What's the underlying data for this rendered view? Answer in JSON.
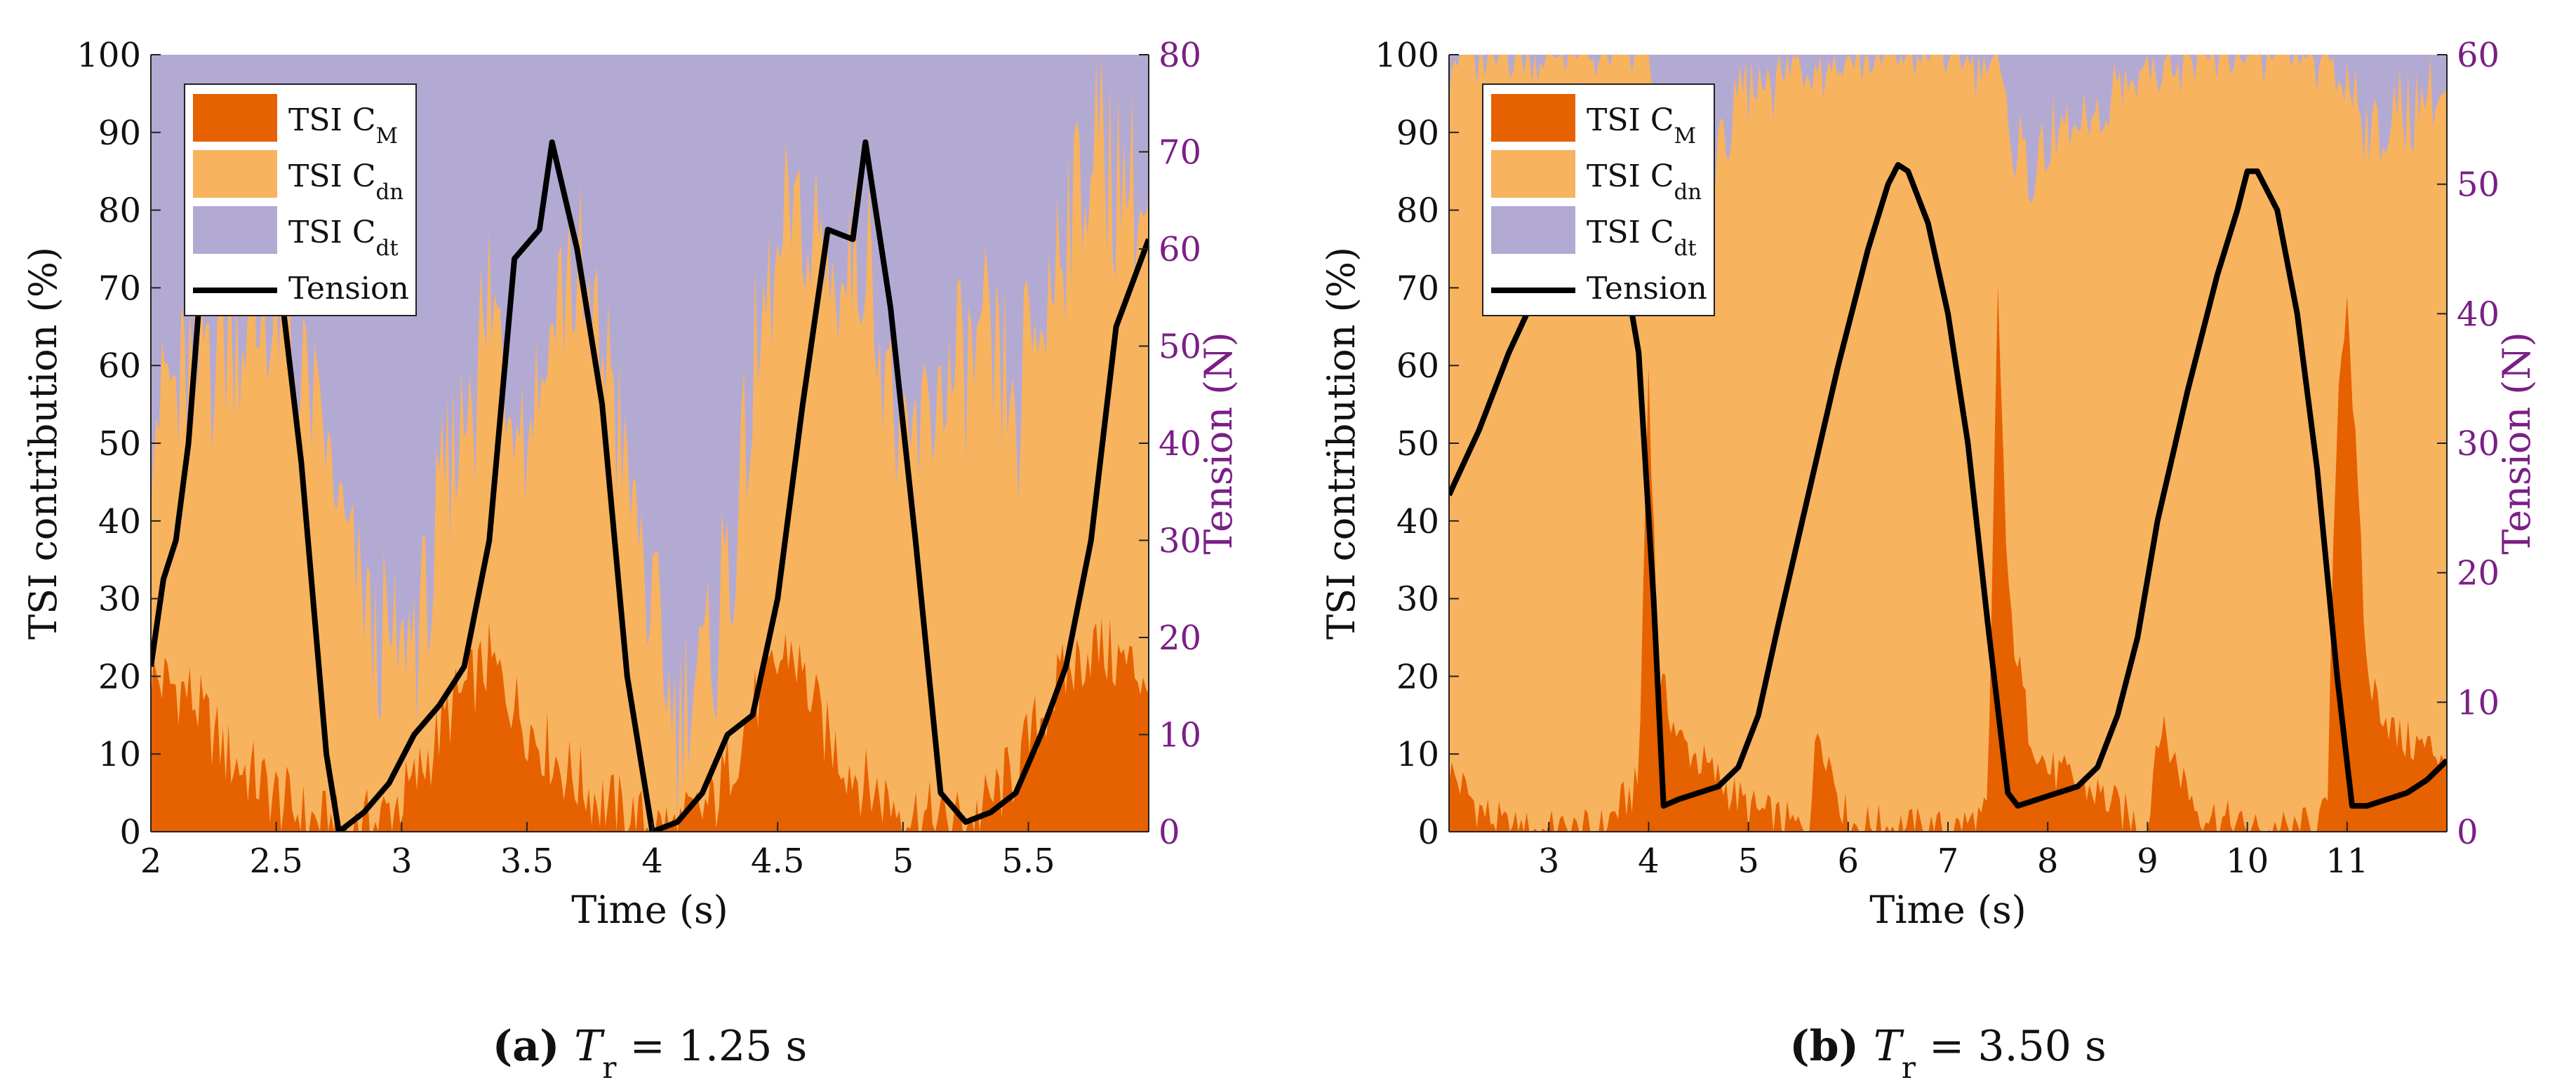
{
  "colors": {
    "cm": "#e66100",
    "cdn": "#f8b35f",
    "cdt": "#b3aad3",
    "tension": "#000000",
    "right_axis": "#7b1f86"
  },
  "legend": {
    "cm": "TSI C_M",
    "cdn": "TSI C_dn",
    "cdt": "TSI C_dt",
    "tension": "Tension"
  },
  "chart_data": [
    {
      "type": "area",
      "panel": "a",
      "caption": {
        "letter": "(a)",
        "text": "T_r = 1.25 s"
      },
      "xlabel": "Time (s)",
      "ylabel_left": "TSI contribution (%)",
      "ylabel_right": "Tension (N)",
      "xlim": [
        2,
        5.98
      ],
      "ylim_left": [
        0,
        100
      ],
      "ylim_right": [
        0,
        80
      ],
      "xticks": [
        2,
        2.5,
        3,
        3.5,
        4,
        4.5,
        5,
        5.5
      ],
      "xtick_labels": [
        "2",
        "2.5",
        "3",
        "3.5",
        "4",
        "4.5",
        "5",
        "5.5"
      ],
      "yticks_left": [
        "0",
        "10",
        "20",
        "30",
        "40",
        "50",
        "60",
        "70",
        "80",
        "90",
        "100"
      ],
      "yticks_right": [
        "0",
        "10",
        "20",
        "30",
        "40",
        "50",
        "60",
        "70",
        "80"
      ],
      "series": [
        {
          "name": "TSI C_M",
          "x": [
            2.0,
            2.15,
            2.3,
            2.45,
            2.6,
            2.75,
            2.9,
            3.05,
            3.2,
            3.35,
            3.5,
            3.65,
            3.8,
            3.95,
            4.1,
            4.25,
            4.4,
            4.55,
            4.7,
            4.85,
            5.0,
            5.15,
            5.3,
            5.45,
            5.6,
            5.75,
            5.98
          ],
          "y": [
            20,
            18,
            10,
            6,
            2,
            0,
            1,
            6,
            16,
            22,
            14,
            8,
            4,
            1,
            0,
            4,
            16,
            24,
            12,
            6,
            3,
            1,
            2,
            8,
            18,
            24,
            20
          ]
        },
        {
          "name": "TSI C_dn",
          "x": [
            2.0,
            2.15,
            2.3,
            2.45,
            2.6,
            2.75,
            2.9,
            3.05,
            3.2,
            3.35,
            3.5,
            3.65,
            3.8,
            3.95,
            4.1,
            4.25,
            4.4,
            4.55,
            4.7,
            4.85,
            5.0,
            5.15,
            5.3,
            5.45,
            5.6,
            5.75,
            5.98
          ],
          "y": [
            35,
            40,
            55,
            60,
            58,
            40,
            22,
            18,
            30,
            45,
            40,
            65,
            60,
            35,
            12,
            20,
            40,
            55,
            60,
            70,
            45,
            55,
            60,
            45,
            55,
            65,
            60
          ]
        },
        {
          "name": "Tension",
          "x": [
            2.0,
            2.05,
            2.1,
            2.15,
            2.2,
            2.3,
            2.4,
            2.5,
            2.6,
            2.7,
            2.75,
            2.85,
            2.95,
            3.05,
            3.15,
            3.25,
            3.35,
            3.45,
            3.55,
            3.6,
            3.7,
            3.8,
            3.9,
            4.0,
            4.1,
            4.2,
            4.3,
            4.4,
            4.5,
            4.6,
            4.7,
            4.8,
            4.85,
            4.95,
            5.05,
            5.15,
            5.25,
            5.35,
            5.45,
            5.55,
            5.65,
            5.75,
            5.85,
            5.98
          ],
          "y": [
            17,
            26,
            30,
            40,
            57,
            66,
            64,
            60,
            38,
            8,
            0,
            2,
            5,
            10,
            13,
            17,
            30,
            59,
            62,
            71,
            60,
            44,
            16,
            0,
            1,
            4,
            10,
            12,
            24,
            44,
            62,
            61,
            71,
            54,
            30,
            4,
            1,
            2,
            4,
            10,
            17,
            30,
            52,
            61
          ]
        }
      ]
    },
    {
      "type": "area",
      "panel": "b",
      "caption": {
        "letter": "(b)",
        "text": "T_r = 3.50 s"
      },
      "xlabel": "Time (s)",
      "ylabel_left": "TSI contribution (%)",
      "ylabel_right": "Tension (N)",
      "xlim": [
        2,
        12
      ],
      "ylim_left": [
        0,
        100
      ],
      "ylim_right": [
        0,
        60
      ],
      "xticks": [
        3,
        4,
        5,
        6,
        7,
        8,
        9,
        10,
        11
      ],
      "xtick_labels": [
        "3",
        "4",
        "5",
        "6",
        "7",
        "8",
        "9",
        "10",
        "11"
      ],
      "yticks_left": [
        "0",
        "10",
        "20",
        "30",
        "40",
        "50",
        "60",
        "70",
        "80",
        "90",
        "100"
      ],
      "yticks_right": [
        "0",
        "10",
        "20",
        "30",
        "40",
        "50",
        "60"
      ],
      "series": [
        {
          "name": "TSI C_M",
          "x": [
            2.0,
            2.3,
            2.6,
            3.0,
            3.5,
            3.9,
            4.0,
            4.1,
            4.3,
            4.6,
            5.0,
            5.6,
            5.7,
            6.0,
            7.0,
            7.4,
            7.5,
            7.6,
            7.8,
            8.0,
            8.5,
            9.0,
            9.1,
            9.5,
            10.0,
            10.5,
            10.8,
            10.9,
            11.0,
            11.2,
            11.5,
            12.0
          ],
          "y": [
            8,
            3,
            0,
            0,
            0,
            6,
            60,
            20,
            12,
            8,
            3,
            0,
            14,
            1,
            0,
            2,
            70,
            30,
            14,
            8,
            5,
            0,
            14,
            3,
            0,
            0,
            2,
            55,
            70,
            20,
            12,
            10
          ]
        },
        {
          "name": "TSI C_dn",
          "x": [
            2.0,
            2.3,
            2.6,
            3.0,
            3.5,
            3.9,
            4.0,
            4.1,
            4.3,
            4.6,
            5.0,
            5.6,
            5.7,
            6.0,
            7.0,
            7.4,
            7.5,
            7.6,
            7.8,
            8.0,
            8.5,
            9.0,
            9.1,
            9.5,
            10.0,
            10.5,
            10.8,
            10.9,
            11.0,
            11.2,
            11.5,
            12.0
          ],
          "y": [
            92,
            97,
            100,
            100,
            100,
            94,
            40,
            68,
            74,
            78,
            92,
            99,
            86,
            99,
            100,
            97,
            28,
            60,
            72,
            80,
            86,
            100,
            86,
            97,
            100,
            100,
            97,
            42,
            28,
            70,
            80,
            86
          ]
        },
        {
          "name": "Tension",
          "x": [
            2.0,
            2.3,
            2.6,
            2.9,
            3.2,
            3.5,
            3.7,
            3.9,
            4.05,
            4.15,
            4.3,
            4.5,
            4.7,
            4.9,
            5.1,
            5.3,
            5.6,
            5.9,
            6.2,
            6.4,
            6.5,
            6.6,
            6.8,
            7.0,
            7.2,
            7.4,
            7.6,
            7.7,
            7.9,
            8.1,
            8.3,
            8.5,
            8.7,
            8.9,
            9.1,
            9.4,
            9.7,
            9.9,
            10.0,
            10.1,
            10.3,
            10.5,
            10.7,
            10.9,
            11.05,
            11.2,
            11.4,
            11.6,
            11.8,
            12.0
          ],
          "y": [
            26,
            31,
            37,
            42,
            47,
            49,
            46,
            37,
            18,
            2,
            2.5,
            3,
            3.5,
            5,
            9,
            16,
            26,
            36,
            45,
            50,
            51.5,
            51,
            47,
            40,
            30,
            16,
            3,
            2,
            2.5,
            3,
            3.5,
            5,
            9,
            15,
            24,
            34,
            43,
            48,
            51,
            51,
            48,
            40,
            28,
            12,
            2,
            2,
            2.5,
            3,
            4,
            5.5
          ]
        }
      ]
    }
  ]
}
